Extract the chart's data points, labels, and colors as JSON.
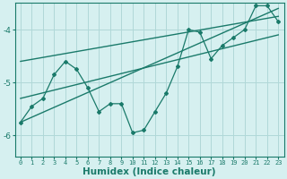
{
  "x": [
    0,
    1,
    2,
    3,
    4,
    5,
    6,
    7,
    8,
    9,
    10,
    11,
    12,
    13,
    14,
    15,
    16,
    17,
    18,
    19,
    20,
    21,
    22,
    23
  ],
  "y_line": [
    -5.75,
    -5.45,
    -5.3,
    -4.85,
    -4.6,
    -4.75,
    -5.1,
    -5.55,
    -5.4,
    -5.4,
    -5.95,
    -5.9,
    -5.55,
    -5.2,
    -4.7,
    -4.0,
    -4.05,
    -4.55,
    -4.3,
    -4.15,
    -4.0,
    -3.55,
    -3.55,
    -3.85
  ],
  "trend1_x": [
    0,
    23
  ],
  "trend1_y": [
    -5.75,
    -3.6
  ],
  "trend2_x": [
    0,
    23
  ],
  "trend2_y": [
    -5.3,
    -4.1
  ],
  "trend3_x": [
    0,
    23
  ],
  "trend3_y": [
    -4.6,
    -3.75
  ],
  "xlabel": "Humidex (Indice chaleur)",
  "yticks": [
    -6,
    -5,
    -4
  ],
  "xticks": [
    0,
    1,
    2,
    3,
    4,
    5,
    6,
    7,
    8,
    9,
    10,
    11,
    12,
    13,
    14,
    15,
    16,
    17,
    18,
    19,
    20,
    21,
    22,
    23
  ],
  "xlim": [
    -0.5,
    23.5
  ],
  "ylim": [
    -6.4,
    -3.5
  ],
  "line_color": "#1a7a6a",
  "bg_color": "#d6f0f0",
  "grid_color": "#b0d8d8",
  "tick_fontsize": 5.0,
  "xlabel_fontsize": 7.5
}
